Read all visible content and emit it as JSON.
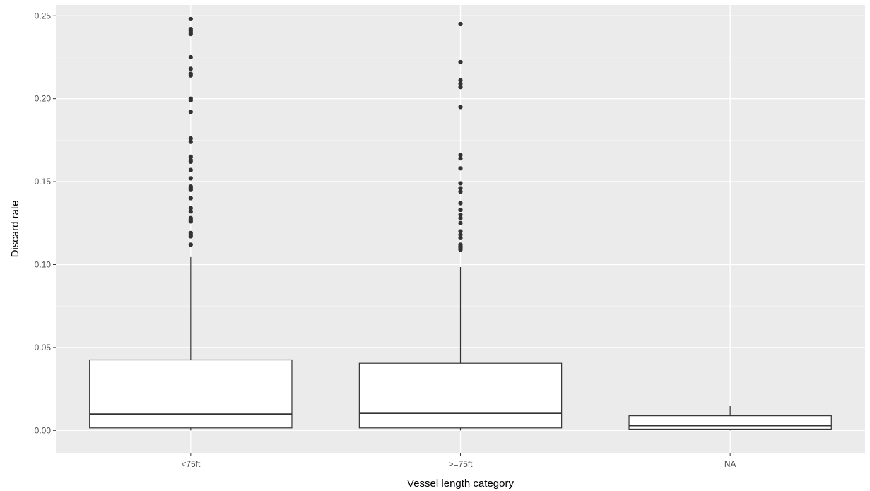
{
  "colors": {
    "panel": "#ebebeb",
    "grid_major": "#ffffff",
    "grid_minor": "#f5f5f5",
    "box_fill": "#ffffff",
    "box_stroke": "#333333",
    "outlier": "#333333",
    "tick_text": "#4d4d4d"
  },
  "chart_data": {
    "type": "box",
    "xlabel": "Vessel length category",
    "ylabel": "Discard rate",
    "categories": [
      "<75ft",
      ">=75ft",
      "NA"
    ],
    "ylim": [
      -0.0135,
      0.2565
    ],
    "yticks": [
      0.0,
      0.05,
      0.1,
      0.15,
      0.2,
      0.25
    ],
    "ytick_labels": [
      "0.00",
      "0.05",
      "0.10",
      "0.15",
      "0.20",
      "0.25"
    ],
    "grid": true,
    "legend": "none",
    "boxes": [
      {
        "category": "<75ft",
        "whisker_low": 0.0,
        "q1": 0.0015,
        "median": 0.0097,
        "q3": 0.0425,
        "whisker_high": 0.1045,
        "outliers": [
          0.248,
          0.242,
          0.241,
          0.24,
          0.239,
          0.225,
          0.218,
          0.215,
          0.214,
          0.2,
          0.199,
          0.192,
          0.176,
          0.174,
          0.165,
          0.163,
          0.162,
          0.157,
          0.152,
          0.147,
          0.146,
          0.145,
          0.14,
          0.134,
          0.132,
          0.128,
          0.127,
          0.126,
          0.119,
          0.118,
          0.117,
          0.112
        ]
      },
      {
        "category": ">=75ft",
        "whisker_low": 0.0,
        "q1": 0.0015,
        "median": 0.0105,
        "q3": 0.0405,
        "whisker_high": 0.0985,
        "outliers": [
          0.245,
          0.222,
          0.211,
          0.209,
          0.207,
          0.195,
          0.166,
          0.164,
          0.158,
          0.149,
          0.146,
          0.144,
          0.137,
          0.133,
          0.13,
          0.128,
          0.125,
          0.12,
          0.118,
          0.116,
          0.112,
          0.111,
          0.11,
          0.109
        ]
      },
      {
        "category": "NA",
        "whisker_low": 0.0,
        "q1": 0.0008,
        "median": 0.003,
        "q3": 0.0088,
        "whisker_high": 0.015,
        "outliers": []
      }
    ]
  }
}
